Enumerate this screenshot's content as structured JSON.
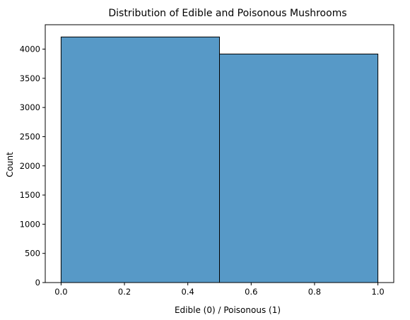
{
  "chart_data": {
    "type": "bar",
    "title": "Distribution of Edible and Poisonous Mushrooms",
    "xlabel": "Edible (0) / Poisonous (1)",
    "ylabel": "Count",
    "bins": [
      {
        "x_start": 0.0,
        "x_end": 0.5,
        "value": 4208
      },
      {
        "x_start": 0.5,
        "x_end": 1.0,
        "value": 3916
      }
    ],
    "xlim": [
      -0.05,
      1.05
    ],
    "ylim": [
      0,
      4418
    ],
    "xticks": [
      "0.0",
      "0.2",
      "0.4",
      "0.6",
      "0.8",
      "1.0"
    ],
    "xtick_values": [
      0.0,
      0.2,
      0.4,
      0.6,
      0.8,
      1.0
    ],
    "yticks": [
      "0",
      "500",
      "1000",
      "1500",
      "2000",
      "2500",
      "3000",
      "3500",
      "4000"
    ],
    "ytick_values": [
      0,
      500,
      1000,
      1500,
      2000,
      2500,
      3000,
      3500,
      4000
    ],
    "grid": false,
    "bar_color": "#5799c7",
    "bar_edge_color": "#000000"
  }
}
